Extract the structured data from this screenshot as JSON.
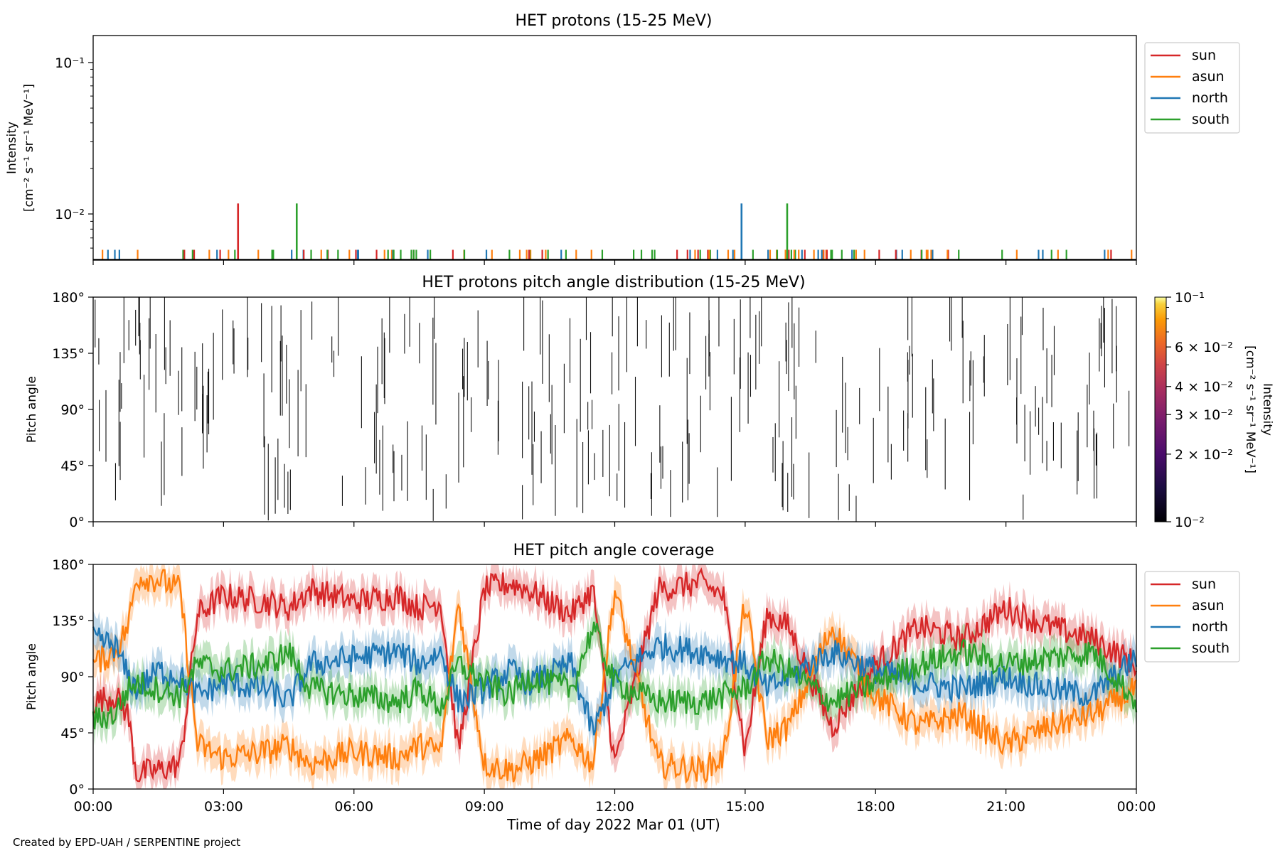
{
  "credit": "Created by EPD-UAH / SERPENTINE project",
  "xlabel": "Time of day 2022 Mar 01 (UT)",
  "colors": {
    "sun": "#d62728",
    "asun": "#ff7f0e",
    "north": "#1f77b4",
    "south": "#2ca02c"
  },
  "chart_data": [
    {
      "type": "line",
      "title": "HET protons (15-25 MeV)",
      "ylabel_line1": "Intensity",
      "ylabel_line2": "[cm⁻² s⁻¹ sr⁻¹ MeV⁻¹]",
      "yscale": "log",
      "ylim": [
        0.005,
        0.15
      ],
      "yticks": [
        "10⁻²",
        "10⁻¹"
      ],
      "xlim": [
        "00:00",
        "24:00"
      ],
      "legend": [
        "sun",
        "asun",
        "north",
        "south"
      ],
      "legend_position": "upper-right outside",
      "baseline": 0.00585,
      "spikes": [
        {
          "series": "sun",
          "time": "03:20",
          "value": 0.0118
        },
        {
          "series": "south",
          "time": "04:41",
          "value": 0.0118
        },
        {
          "series": "north",
          "time": "14:55",
          "value": 0.0118
        },
        {
          "series": "south",
          "time": "15:58",
          "value": 0.0118
        }
      ],
      "note": "All other intervals show counts at the single-count level (~0.0059) as short ticks scattered across the day"
    },
    {
      "type": "heatmap",
      "title": "HET protons pitch angle distribution (15-25 MeV)",
      "ylabel": "Pitch angle",
      "yticks": [
        "0°",
        "45°",
        "90°",
        "135°",
        "180°"
      ],
      "ylim": [
        0,
        180
      ],
      "xlim": [
        "00:00",
        "24:00"
      ],
      "colorbar_label_line1": "Intensity",
      "colorbar_label_line2": "[cm⁻² s⁻¹ sr⁻¹ MeV⁻¹]",
      "colorbar_scale": "log",
      "colorbar_range": [
        0.01,
        0.1
      ],
      "colorbar_ticks": [
        "10⁻²",
        "2 × 10⁻²",
        "3 × 10⁻²",
        "4 × 10⁻²",
        "6 × 10⁻²",
        "10⁻¹"
      ],
      "note": "Sparse single-count pixels appear as thin dark vertical lines"
    },
    {
      "type": "line",
      "title": "HET pitch angle coverage",
      "ylabel": "Pitch angle",
      "yticks": [
        "0°",
        "45°",
        "90°",
        "135°",
        "180°"
      ],
      "ylim": [
        0,
        180
      ],
      "xlim": [
        "00:00",
        "24:00"
      ],
      "xticks": [
        "00:00",
        "03:00",
        "06:00",
        "09:00",
        "12:00",
        "15:00",
        "18:00",
        "21:00",
        "00:00"
      ],
      "legend": [
        "sun",
        "asun",
        "north",
        "south"
      ],
      "legend_position": "upper-right outside",
      "band_halfwidth_deg": 13,
      "series": [
        {
          "name": "sun",
          "hours": [
            0,
            0.5,
            0.8,
            1.0,
            1.5,
            2.0,
            2.4,
            3.0,
            4.0,
            4.5,
            5.0,
            6.0,
            7.0,
            7.5,
            8.0,
            8.4,
            9.0,
            9.6,
            10.0,
            11.0,
            11.5,
            12.0,
            13.0,
            14.0,
            14.5,
            15.0,
            15.5,
            16.0,
            17.0,
            18.0,
            19.0,
            20.0,
            21.0,
            22.0,
            23.0,
            24.0
          ],
          "values": [
            70,
            75,
            60,
            12,
            15,
            20,
            140,
            155,
            150,
            145,
            160,
            150,
            155,
            145,
            150,
            30,
            160,
            165,
            160,
            140,
            160,
            20,
            160,
            165,
            155,
            30,
            140,
            130,
            50,
            100,
            130,
            120,
            145,
            130,
            120,
            100
          ]
        },
        {
          "name": "asun",
          "hours": [
            0,
            0.5,
            0.8,
            1.0,
            1.5,
            2.0,
            2.4,
            3.0,
            4.0,
            4.5,
            5.0,
            6.0,
            7.0,
            7.5,
            8.0,
            8.4,
            9.0,
            9.6,
            10.0,
            11.0,
            11.5,
            12.0,
            13.0,
            14.0,
            14.5,
            15.0,
            15.5,
            16.0,
            17.0,
            18.0,
            19.0,
            20.0,
            21.0,
            22.0,
            23.0,
            24.0
          ],
          "values": [
            100,
            110,
            130,
            170,
            168,
            160,
            35,
            25,
            30,
            35,
            20,
            30,
            25,
            35,
            30,
            150,
            20,
            15,
            20,
            40,
            20,
            160,
            20,
            15,
            25,
            150,
            40,
            50,
            130,
            75,
            50,
            60,
            35,
            50,
            60,
            80
          ]
        },
        {
          "name": "north",
          "hours": [
            0,
            0.5,
            0.8,
            1.0,
            1.5,
            2.0,
            2.4,
            3.0,
            4.0,
            4.5,
            5.0,
            6.0,
            7.0,
            7.5,
            8.0,
            8.4,
            9.0,
            9.6,
            10.0,
            11.0,
            11.5,
            12.0,
            13.0,
            14.0,
            14.5,
            15.0,
            15.5,
            16.0,
            17.0,
            18.0,
            19.0,
            20.0,
            21.0,
            22.0,
            23.0,
            24.0
          ],
          "values": [
            120,
            115,
            90,
            80,
            95,
            90,
            75,
            85,
            80,
            70,
            100,
            105,
            110,
            100,
            110,
            70,
            80,
            95,
            85,
            100,
            45,
            90,
            115,
            110,
            105,
            100,
            80,
            90,
            110,
            95,
            85,
            80,
            90,
            80,
            75,
            105
          ]
        },
        {
          "name": "south",
          "hours": [
            0,
            0.5,
            0.8,
            1.0,
            1.5,
            2.0,
            2.4,
            3.0,
            4.0,
            4.5,
            5.0,
            6.0,
            7.0,
            7.5,
            8.0,
            8.4,
            9.0,
            9.6,
            10.0,
            11.0,
            11.5,
            12.0,
            13.0,
            14.0,
            14.5,
            15.0,
            15.5,
            16.0,
            17.0,
            18.0,
            19.0,
            20.0,
            21.0,
            22.0,
            23.0,
            24.0
          ],
          "values": [
            55,
            60,
            80,
            85,
            80,
            75,
            100,
            95,
            100,
            110,
            80,
            75,
            70,
            80,
            65,
            100,
            85,
            75,
            90,
            80,
            130,
            85,
            70,
            70,
            75,
            80,
            105,
            95,
            70,
            85,
            100,
            110,
            100,
            105,
            110,
            70
          ]
        }
      ]
    }
  ]
}
